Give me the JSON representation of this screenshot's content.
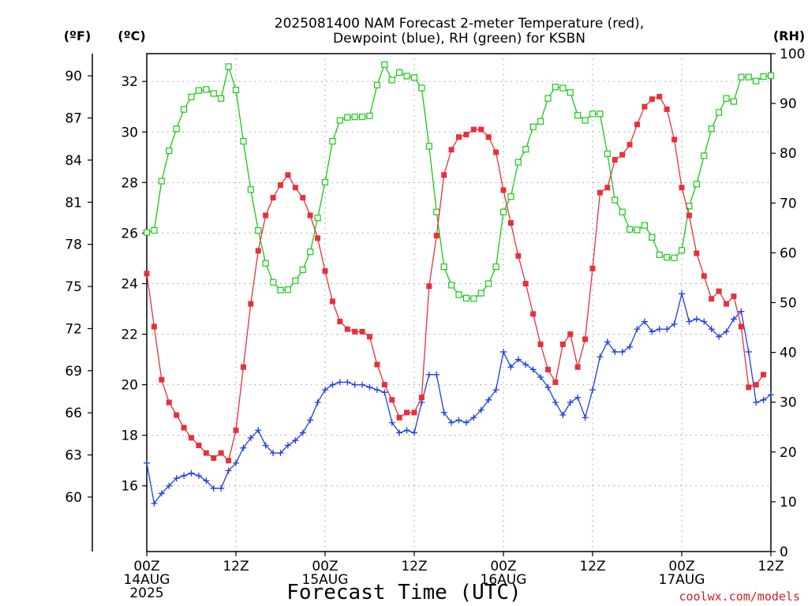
{
  "colors": {
    "temperature": "#e8303a",
    "dewpoint": "#1f3fe0",
    "rh": "#18c818",
    "credit": "#d42020",
    "grid": "#9a9a9a"
  },
  "chart_data": {
    "type": "line",
    "title_lines": [
      "2025081400 NAM Forecast 2-meter Temperature (red),",
      "Dewpoint (blue), RH (green) for KSBN"
    ],
    "xlabel": "Forecast Time (UTC)",
    "credit": "coolwx.com/models",
    "units": {
      "fahrenheit": "(ºF)",
      "celsius": "(ºC)",
      "rh": "(RH)"
    },
    "x_hours_range": [
      0,
      84
    ],
    "x_ticks": [
      {
        "hour": 0,
        "lines": [
          "00Z",
          "14AUG",
          "2025"
        ]
      },
      {
        "hour": 12,
        "lines": [
          "12Z"
        ]
      },
      {
        "hour": 24,
        "lines": [
          "00Z",
          "15AUG"
        ]
      },
      {
        "hour": 36,
        "lines": [
          "12Z"
        ]
      },
      {
        "hour": 48,
        "lines": [
          "00Z",
          "16AUG"
        ]
      },
      {
        "hour": 60,
        "lines": [
          "12Z"
        ]
      },
      {
        "hour": 72,
        "lines": [
          "00Z",
          "17AUG"
        ]
      },
      {
        "hour": 84,
        "lines": [
          "12Z"
        ]
      }
    ],
    "celsius_range": [
      13.4,
      33.1
    ],
    "celsius_ticks": [
      "32",
      "30",
      "28",
      "26",
      "24",
      "22",
      "20",
      "18",
      "16"
    ],
    "fahrenheit_ticks": [
      "90",
      "87",
      "84",
      "81",
      "78",
      "75",
      "72",
      "69",
      "66",
      "63",
      "60"
    ],
    "rh_range": [
      0,
      100
    ],
    "rh_ticks": [
      "100",
      "90",
      "80",
      "70",
      "60",
      "50",
      "40",
      "30",
      "20",
      "10",
      "0"
    ],
    "hours": [
      0,
      1,
      2,
      3,
      4,
      5,
      6,
      7,
      8,
      9,
      10,
      11,
      12,
      13,
      14,
      15,
      16,
      17,
      18,
      19,
      20,
      21,
      22,
      23,
      24,
      25,
      26,
      27,
      28,
      29,
      30,
      31,
      32,
      33,
      34,
      35,
      36,
      37,
      38,
      39,
      40,
      41,
      42,
      43,
      44,
      45,
      46,
      47,
      48,
      49,
      50,
      51,
      52,
      53,
      54,
      55,
      56,
      57,
      58,
      59,
      60,
      61,
      62,
      63,
      64,
      65,
      66,
      67,
      68,
      69,
      70,
      71,
      72,
      73,
      74,
      75,
      76,
      77,
      78,
      79,
      80,
      81,
      82,
      83,
      84
    ],
    "series": [
      {
        "name": "Temperature",
        "unit": "°C",
        "marker": "filled-square",
        "values": [
          24.4,
          22.3,
          20.2,
          19.3,
          18.8,
          18.3,
          17.9,
          17.6,
          17.3,
          17.1,
          17.3,
          17.0,
          18.2,
          20.7,
          23.2,
          25.3,
          26.7,
          27.4,
          27.9,
          28.3,
          27.8,
          27.4,
          26.7,
          25.8,
          24.5,
          23.3,
          22.5,
          22.2,
          22.1,
          22.1,
          21.9,
          20.8,
          20.0,
          19.4,
          18.7,
          18.9,
          18.9,
          19.5,
          23.9,
          25.9,
          28.3,
          29.3,
          29.8,
          29.9,
          30.1,
          30.1,
          29.8,
          29.2,
          27.7,
          26.4,
          25.1,
          24.0,
          22.8,
          21.6,
          20.6,
          20.1,
          21.6,
          22.0,
          20.7,
          21.8,
          24.6,
          27.6,
          27.8,
          28.9,
          29.1,
          29.5,
          30.3,
          31.0,
          31.3,
          31.4,
          30.9,
          29.7,
          27.8,
          26.7,
          25.2,
          24.3,
          23.4,
          23.7,
          23.2,
          23.5,
          22.3,
          19.9,
          20.0,
          20.4
        ]
      },
      {
        "name": "Dewpoint",
        "unit": "°C",
        "marker": "plus",
        "values": [
          16.9,
          15.3,
          15.7,
          16.0,
          16.3,
          16.4,
          16.5,
          16.4,
          16.2,
          15.9,
          15.9,
          16.6,
          16.9,
          17.5,
          17.9,
          18.2,
          17.6,
          17.3,
          17.3,
          17.6,
          17.8,
          18.1,
          18.6,
          19.3,
          19.8,
          20.0,
          20.1,
          20.1,
          20.0,
          20.0,
          19.9,
          19.8,
          19.7,
          18.5,
          18.1,
          18.2,
          18.1,
          19.3,
          20.4,
          20.4,
          18.9,
          18.5,
          18.6,
          18.5,
          18.7,
          19.0,
          19.4,
          19.8,
          21.3,
          20.7,
          21.0,
          20.8,
          20.6,
          20.3,
          19.9,
          19.3,
          18.8,
          19.3,
          19.5,
          18.7,
          19.8,
          21.1,
          21.7,
          21.3,
          21.3,
          21.5,
          22.2,
          22.5,
          22.1,
          22.2,
          22.2,
          22.4,
          23.6,
          22.5,
          22.6,
          22.5,
          22.2,
          21.9,
          22.1,
          22.6,
          22.9,
          21.3,
          19.3,
          19.4,
          19.6
        ]
      },
      {
        "name": "RH",
        "unit": "%",
        "marker": "open-square",
        "values": [
          64.1,
          64.5,
          74.4,
          80.5,
          84.9,
          88.8,
          91.3,
          92.6,
          92.8,
          92.0,
          91.0,
          97.4,
          92.7,
          82.4,
          72.7,
          64.5,
          57.9,
          54.1,
          52.5,
          52.6,
          54.4,
          56.6,
          60.2,
          67.0,
          74.2,
          82.4,
          86.6,
          87.2,
          87.3,
          87.3,
          87.5,
          93.7,
          97.8,
          94.7,
          96.2,
          95.5,
          95.2,
          93.1,
          81.4,
          68.2,
          57.2,
          53.5,
          51.6,
          50.9,
          50.8,
          51.9,
          53.8,
          57.2,
          68.2,
          71.3,
          78.2,
          80.8,
          85.3,
          86.4,
          91.0,
          93.3,
          93.1,
          92.2,
          87.6,
          86.6,
          87.9,
          87.9,
          79.9,
          70.6,
          68.2,
          64.7,
          64.6,
          65.5,
          63.1,
          59.6,
          59.1,
          59.0,
          60.5,
          69.4,
          73.8,
          79.5,
          84.9,
          88.2,
          91.0,
          90.4,
          95.3,
          95.3,
          94.5,
          95.4,
          95.6
        ]
      }
    ]
  }
}
